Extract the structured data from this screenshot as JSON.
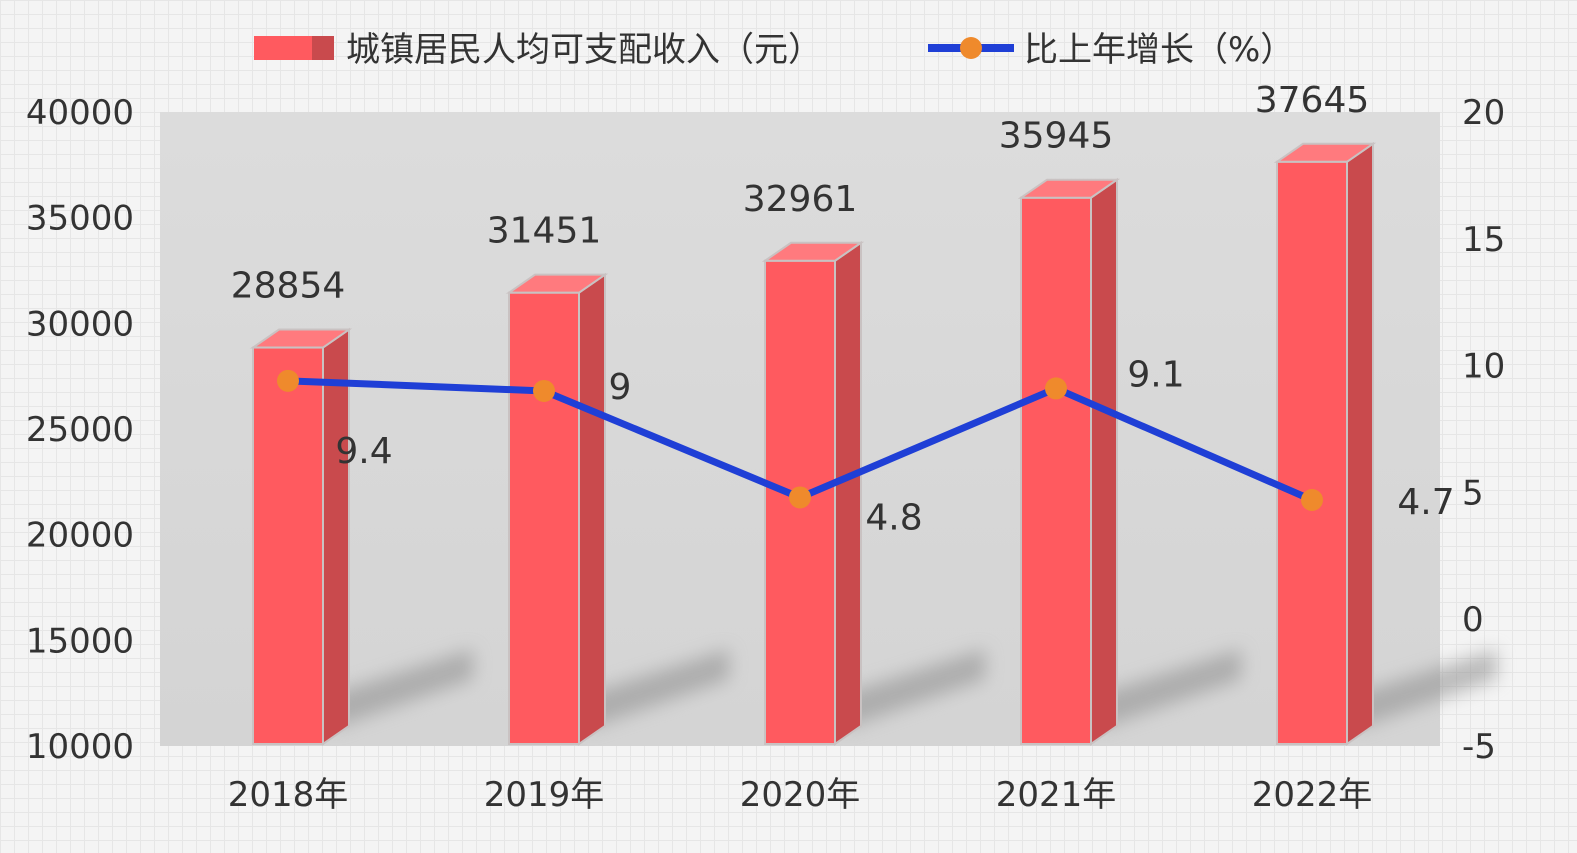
{
  "chart_data": {
    "type": "bar",
    "categories": [
      "2018年",
      "2019年",
      "2020年",
      "2021年",
      "2022年"
    ],
    "series": [
      {
        "name": "城镇居民人均可支配收入（元）",
        "type": "bar",
        "axis": "left",
        "values": [
          28854,
          31451,
          32961,
          35945,
          37645
        ],
        "color": "#ff5a5f"
      },
      {
        "name": "比上年增长（%）",
        "type": "line",
        "axis": "right",
        "values": [
          9.4,
          9,
          4.8,
          9.1,
          4.7
        ],
        "line_color": "#1f3fd6",
        "marker_color": "#ef8a2c"
      }
    ],
    "y_left": {
      "min": 10000,
      "max": 40000,
      "ticks": [
        10000,
        15000,
        20000,
        25000,
        30000,
        35000,
        40000
      ]
    },
    "y_right": {
      "min": -5,
      "max": 20,
      "ticks": [
        -5,
        0,
        5,
        10,
        15,
        20
      ]
    },
    "legend_position": "top",
    "grid": false,
    "style": "3d-bar"
  }
}
